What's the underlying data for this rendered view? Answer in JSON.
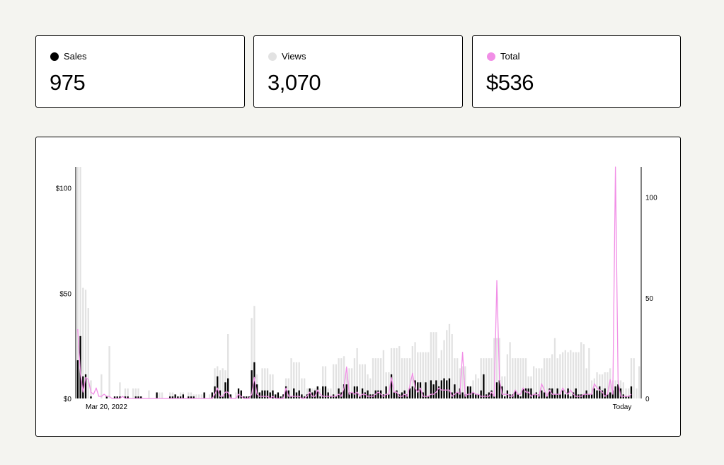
{
  "stats": [
    {
      "label": "Sales",
      "value": "975",
      "color": "#000000",
      "icon": "black-dot-icon"
    },
    {
      "label": "Views",
      "value": "3,070",
      "color": "#e2e2e2",
      "icon": "gray-dot-icon"
    },
    {
      "label": "Total",
      "value": "$536",
      "color": "#f18ee6",
      "icon": "pink-dot-icon"
    }
  ],
  "chart_data": {
    "type": "bar",
    "title": "",
    "x_start_label": "Mar 20, 2022",
    "x_end_label": "Today",
    "left_axis": {
      "ticks": [
        "$0",
        "$50",
        "$100"
      ],
      "values": [
        0,
        50,
        100
      ],
      "ylim": [
        0,
        110
      ]
    },
    "right_axis": {
      "ticks": [
        "0",
        "50",
        "100"
      ],
      "values": [
        0,
        50,
        100
      ],
      "ylim": [
        0,
        115
      ]
    },
    "grid": false,
    "colors": {
      "sales": "#000000",
      "views": "#e2e2e2",
      "total": "#f18ee6"
    },
    "series": [
      {
        "name": "Views",
        "type": "bar",
        "axis": "right",
        "values": [
          115,
          115,
          55,
          54,
          45,
          9,
          0,
          0,
          0,
          12,
          0,
          0,
          26,
          0,
          0,
          0,
          8,
          0,
          5,
          5,
          0,
          5,
          5,
          5,
          0,
          0,
          0,
          4,
          0,
          0,
          0,
          3,
          3,
          0,
          0,
          3,
          3,
          0,
          0,
          3,
          3,
          0,
          3,
          3,
          2,
          2,
          2,
          2,
          0,
          0,
          2,
          2,
          15,
          16,
          14,
          15,
          14,
          32,
          0,
          0,
          3,
          3,
          1,
          1,
          1,
          1,
          40,
          46,
          12,
          0,
          15,
          15,
          15,
          12,
          12,
          0,
          0,
          1,
          2,
          10,
          10,
          20,
          18,
          18,
          18,
          10,
          10,
          5,
          5,
          5,
          5,
          5,
          5,
          16,
          16,
          5,
          5,
          17,
          17,
          20,
          20,
          21,
          15,
          15,
          15,
          20,
          25,
          17,
          17,
          17,
          12,
          10,
          20,
          20,
          20,
          20,
          24,
          13,
          13,
          25,
          25,
          25,
          26,
          20,
          20,
          20,
          20,
          26,
          28,
          23,
          23,
          23,
          23,
          23,
          33,
          33,
          33,
          20,
          24,
          29,
          34,
          37,
          32,
          20,
          20,
          15,
          16,
          16,
          5,
          5,
          9,
          12,
          10,
          20,
          20,
          20,
          20,
          20,
          30,
          30,
          30,
          11,
          11,
          22,
          28,
          20,
          20,
          20,
          20,
          20,
          20,
          11,
          11,
          16,
          15,
          15,
          15,
          20,
          20,
          20,
          22,
          30,
          20,
          22,
          23,
          24,
          23,
          24,
          23,
          23,
          23,
          28,
          27,
          15,
          25,
          9,
          10,
          13,
          12,
          12,
          13,
          13,
          15,
          9,
          9,
          9,
          9,
          8,
          5,
          5,
          20,
          20,
          5,
          16
        ]
      },
      {
        "name": "Sales",
        "type": "bar",
        "axis": "right",
        "values": [
          19,
          31,
          11,
          12,
          0,
          1,
          0,
          0,
          0,
          0,
          0,
          1,
          0,
          0,
          1,
          1,
          1,
          0,
          1,
          1,
          0,
          0,
          1,
          1,
          1,
          0,
          0,
          0,
          0,
          0,
          3,
          0,
          0,
          0,
          0,
          1,
          1,
          2,
          1,
          1,
          2,
          0,
          1,
          1,
          1,
          0,
          0,
          0,
          3,
          0,
          0,
          3,
          6,
          11,
          4,
          1,
          8,
          10,
          2,
          0,
          0,
          5,
          4,
          1,
          1,
          1,
          14,
          18,
          7,
          3,
          4,
          4,
          4,
          3,
          4,
          2,
          3,
          1,
          2,
          6,
          4,
          1,
          5,
          3,
          4,
          2,
          1,
          2,
          5,
          3,
          4,
          6,
          1,
          6,
          6,
          3,
          1,
          2,
          1,
          5,
          3,
          7,
          7,
          3,
          3,
          6,
          6,
          1,
          5,
          3,
          4,
          2,
          2,
          4,
          4,
          4,
          2,
          6,
          2,
          12,
          3,
          4,
          2,
          3,
          4,
          2,
          5,
          6,
          9,
          8,
          8,
          3,
          8,
          1,
          9,
          7,
          9,
          6,
          9,
          10,
          9,
          10,
          3,
          7,
          3,
          5,
          3,
          2,
          6,
          6,
          3,
          2,
          2,
          4,
          12,
          2,
          3,
          4,
          1,
          8,
          9,
          6,
          1,
          4,
          2,
          2,
          4,
          2,
          1,
          5,
          5,
          5,
          5,
          2,
          3,
          2,
          4,
          3,
          1,
          5,
          5,
          2,
          5,
          2,
          4,
          2,
          5,
          1,
          3,
          5,
          2,
          2,
          2,
          4,
          2,
          2,
          5,
          4,
          6,
          4,
          5,
          2,
          3,
          4,
          6,
          7,
          5,
          2,
          1,
          1,
          6
        ]
      },
      {
        "name": "Total",
        "type": "line",
        "axis": "left",
        "values": [
          33,
          12,
          3,
          10,
          9,
          3,
          2,
          5,
          1,
          1,
          2,
          1,
          1,
          0,
          0,
          0,
          0,
          1,
          0,
          0,
          0,
          0,
          0,
          0,
          0,
          0,
          0,
          0,
          0,
          0,
          0,
          0,
          0,
          0,
          0,
          0,
          0,
          0,
          0,
          0,
          0,
          0,
          0,
          0,
          0,
          0,
          0,
          0,
          0,
          0,
          0,
          0,
          2,
          5,
          1,
          1,
          3,
          3,
          0,
          0,
          0,
          2,
          1,
          0,
          0,
          0,
          2,
          10,
          2,
          1,
          1,
          1,
          1,
          0,
          1,
          0,
          0,
          0,
          0,
          5,
          1,
          1,
          1,
          1,
          1,
          0,
          0,
          1,
          3,
          1,
          1,
          4,
          2,
          1,
          1,
          1,
          1,
          1,
          1,
          2,
          1,
          5,
          15,
          2,
          3,
          2,
          3,
          1,
          2,
          2,
          1,
          1,
          1,
          2,
          3,
          2,
          1,
          2,
          2,
          10,
          3,
          3,
          1,
          1,
          2,
          1,
          6,
          12,
          5,
          3,
          5,
          1,
          1,
          1,
          2,
          2,
          3,
          5,
          4,
          4,
          4,
          4,
          1,
          2,
          3,
          2,
          22,
          1,
          2,
          2,
          3,
          2,
          2,
          1,
          1,
          1,
          1,
          3,
          1,
          56,
          9,
          2,
          2,
          2,
          1,
          1,
          4,
          2,
          2,
          5,
          3,
          3,
          1,
          2,
          2,
          1,
          7,
          4,
          1,
          4,
          2,
          2,
          2,
          2,
          5,
          3,
          2,
          4,
          2,
          1,
          1,
          1,
          2,
          2,
          2,
          2,
          7,
          5,
          4,
          3,
          1,
          2,
          9,
          2,
          110,
          8,
          1,
          1,
          1,
          1,
          2
        ]
      }
    ]
  }
}
